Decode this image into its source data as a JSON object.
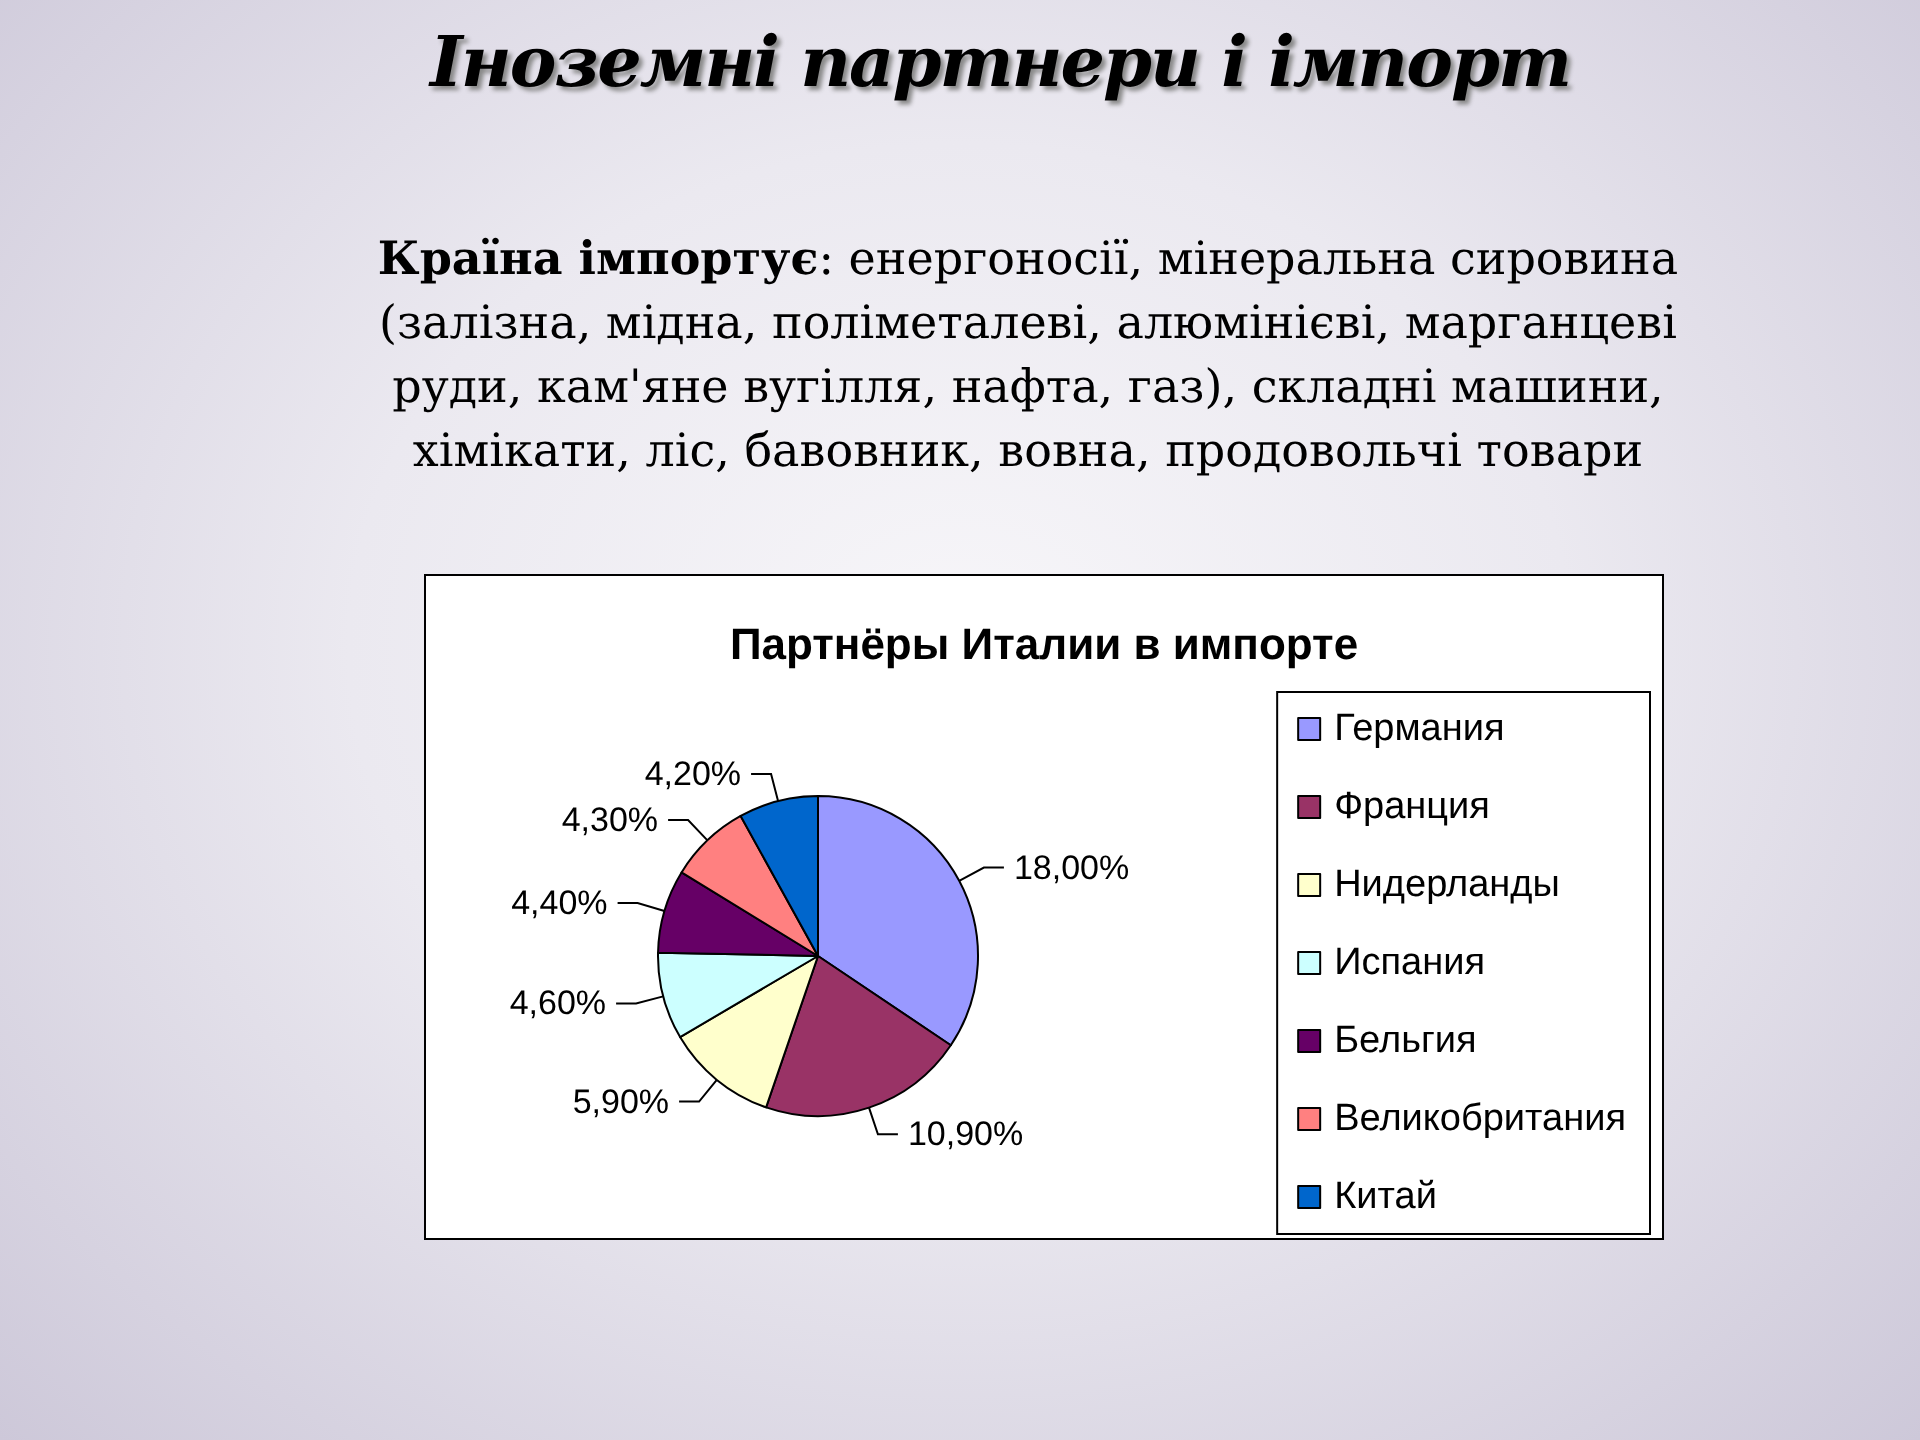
{
  "chart_data": {
    "type": "pie",
    "title": "Партнёры Италии в импорте",
    "categories": [
      "Германия",
      "Франция",
      "Нидерланды",
      "Испания",
      "Бельгия",
      "Великобритания",
      "Китай"
    ],
    "values": [
      18,
      10.9,
      5.9,
      4.6,
      4.4,
      4.3,
      4.2
    ],
    "colors": [
      "#9999ff",
      "#993366",
      "#ffffcc",
      "#ccffff",
      "#660066",
      "#ff8080",
      "#0066cc"
    ],
    "value_labels": [
      "18,00%",
      "10,90%",
      "5,90%",
      "4,60%",
      "4,40%",
      "4,30%",
      "4,20%"
    ],
    "legend": "right",
    "annotations": [
      "Іноземні партнери і імпорт",
      "Країна імпортує: енергоносії, мінеральна сировина (залізна, мідна, поліметалеві, алюмінієві, марганцеві руди, кам'яне вугілля, нафта, газ), складні машини, хімікати, ліс, бавовник, вовна, продовольчі товари"
    ]
  }
}
